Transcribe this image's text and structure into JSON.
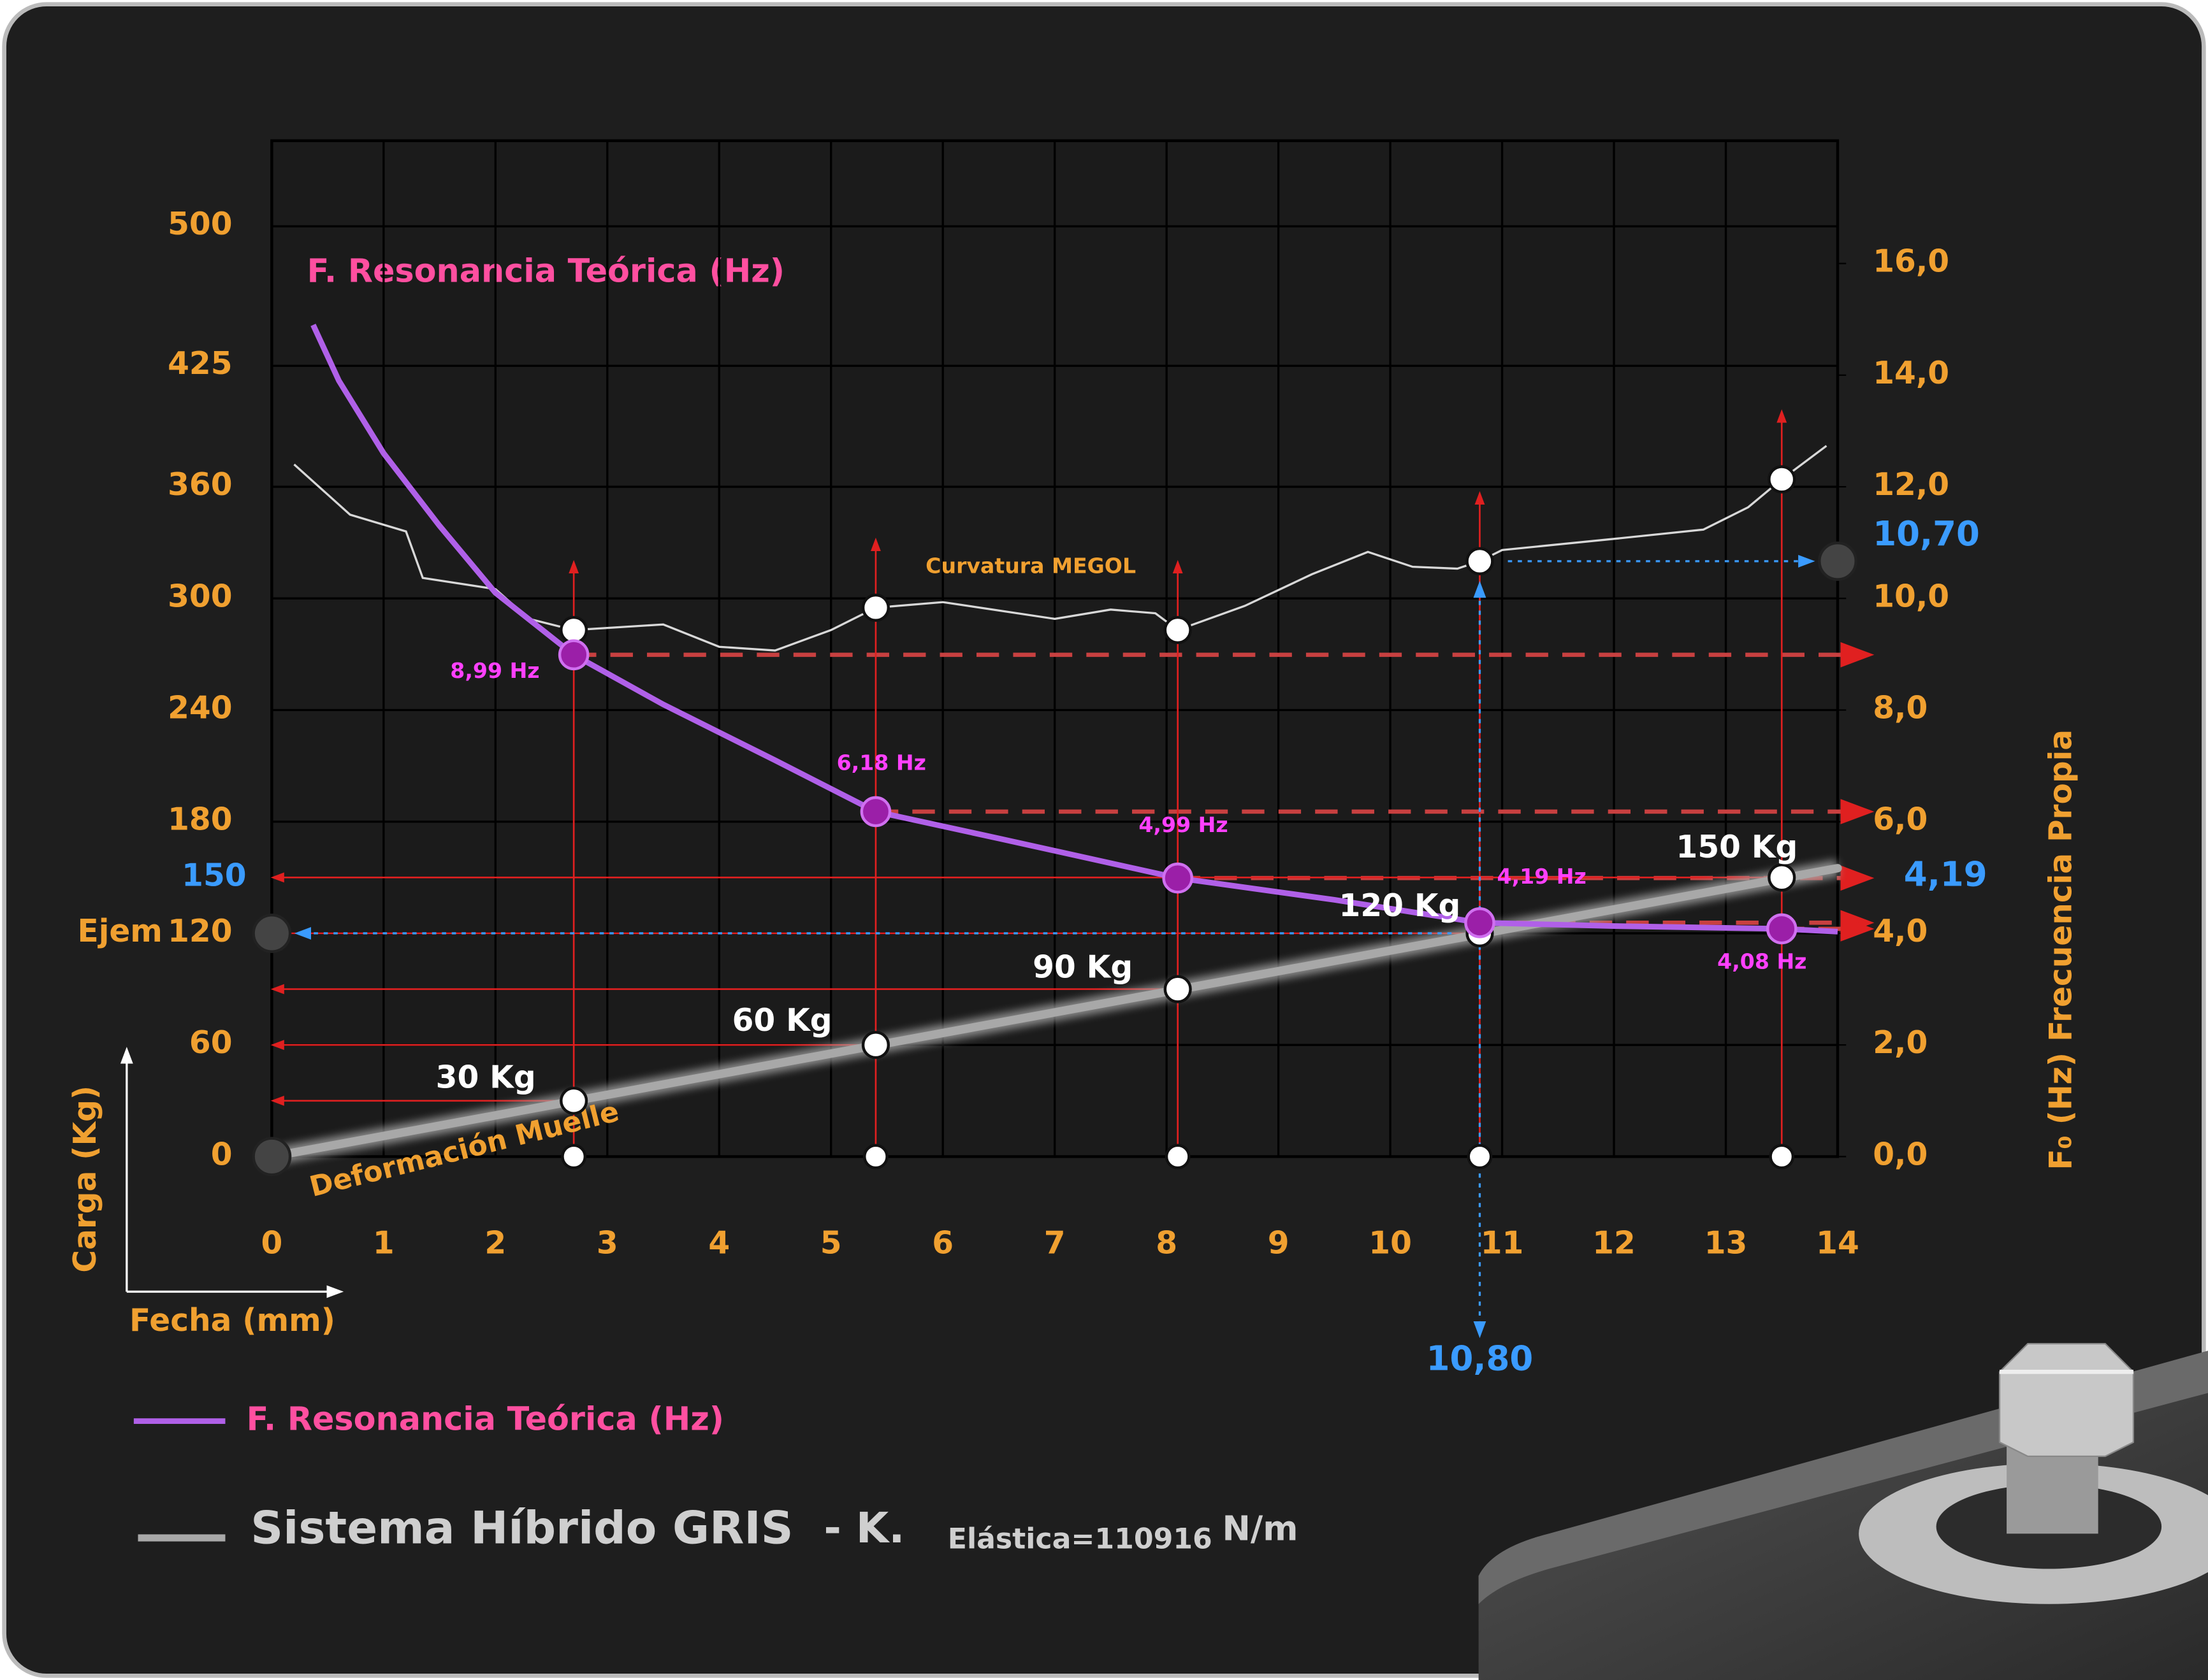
{
  "chart_data": {
    "type": "line",
    "x_label": "Fecha (mm)",
    "y_label": "Carga (Kg)",
    "y2_label": "F₀ (Hz) Frecuencia Propia",
    "xlim": [
      0,
      14
    ],
    "xticks": [
      0,
      1,
      2,
      3,
      4,
      5,
      6,
      7,
      8,
      9,
      10,
      11,
      12,
      13,
      14
    ],
    "ylim": [
      0,
      546
    ],
    "yticks": [
      0,
      60,
      120,
      180,
      240,
      300,
      360,
      425,
      500
    ],
    "y2lim": [
      0,
      18.2
    ],
    "y2ticks": [
      {
        "value": 0,
        "label": "0,0"
      },
      {
        "value": 2,
        "label": "2,0"
      },
      {
        "value": 4,
        "label": "4,0"
      },
      {
        "value": 6,
        "label": "6,0"
      },
      {
        "value": 8,
        "label": "8,0"
      },
      {
        "value": 10,
        "label": "10,0"
      },
      {
        "value": 12,
        "label": "12,0"
      },
      {
        "value": 14,
        "label": "14,0"
      },
      {
        "value": 16,
        "label": "16,0"
      }
    ],
    "grid": true,
    "markers_x": [
      2.7,
      5.4,
      8.1,
      10.8,
      13.5
    ],
    "series": [
      {
        "name": "F. Resonancia Teórica (Hz)",
        "color": "#b060e8",
        "axis": "y2",
        "x": [
          0.37,
          0.6,
          1,
          1.5,
          2,
          2.7,
          3.5,
          4.5,
          5.4,
          6.5,
          8.1,
          9.5,
          10.8,
          12,
          13.5,
          14
        ],
        "values": [
          14.9,
          13.9,
          12.6,
          11.3,
          10.1,
          8.99,
          8.1,
          7.1,
          6.18,
          5.7,
          4.99,
          4.6,
          4.19,
          4.13,
          4.08,
          4.03
        ],
        "marker_values": [
          8.99,
          6.18,
          4.99,
          4.19,
          4.08
        ],
        "marker_labels": [
          "8,99 Hz",
          "6,18 Hz",
          "4,99 Hz",
          "4,19 Hz",
          "4,08 Hz"
        ]
      },
      {
        "name": "Sistema Híbrido GRIS",
        "color": "#a8a8a8",
        "axis": "y",
        "x": [
          0,
          14
        ],
        "values": [
          0,
          155
        ],
        "marker_values": [
          30,
          60,
          90,
          120,
          150
        ],
        "marker_labels": [
          "30 Kg",
          "60 Kg",
          "90 Kg",
          "120 Kg",
          "150 Kg"
        ]
      },
      {
        "name": "Curvatura MEGOL",
        "color": "#d8d8d8",
        "axis": "y",
        "x": [
          0.2,
          0.7,
          1.2,
          1.35,
          2,
          2.3,
          2.7,
          3.5,
          4,
          4.5,
          5,
          5.4,
          6,
          7,
          7.5,
          7.9,
          8.1,
          8.7,
          9.3,
          9.8,
          10.2,
          10.6,
          10.8,
          11,
          12,
          12.8,
          13.2,
          13.5,
          13.9
        ],
        "values": [
          372,
          345,
          336,
          311,
          305,
          289,
          283,
          286,
          274,
          272,
          283,
          295,
          298,
          289,
          294,
          292,
          283,
          296,
          313,
          325,
          317,
          316,
          320,
          326,
          332,
          337,
          349,
          364,
          382
        ],
        "marker_values": [
          283,
          295,
          283,
          320,
          364
        ]
      }
    ],
    "legend": {
      "k_prefix": "- K.",
      "k_subscript": "Elástica=110916",
      "k_unit": "N/m"
    },
    "annotations": {
      "ejem": "Ejem",
      "load_marker": "150",
      "freq_marker": "4,19",
      "megol_marker": "10,70",
      "deflection_marker": "10,80",
      "spring_label": "Deformación Muelle"
    }
  }
}
